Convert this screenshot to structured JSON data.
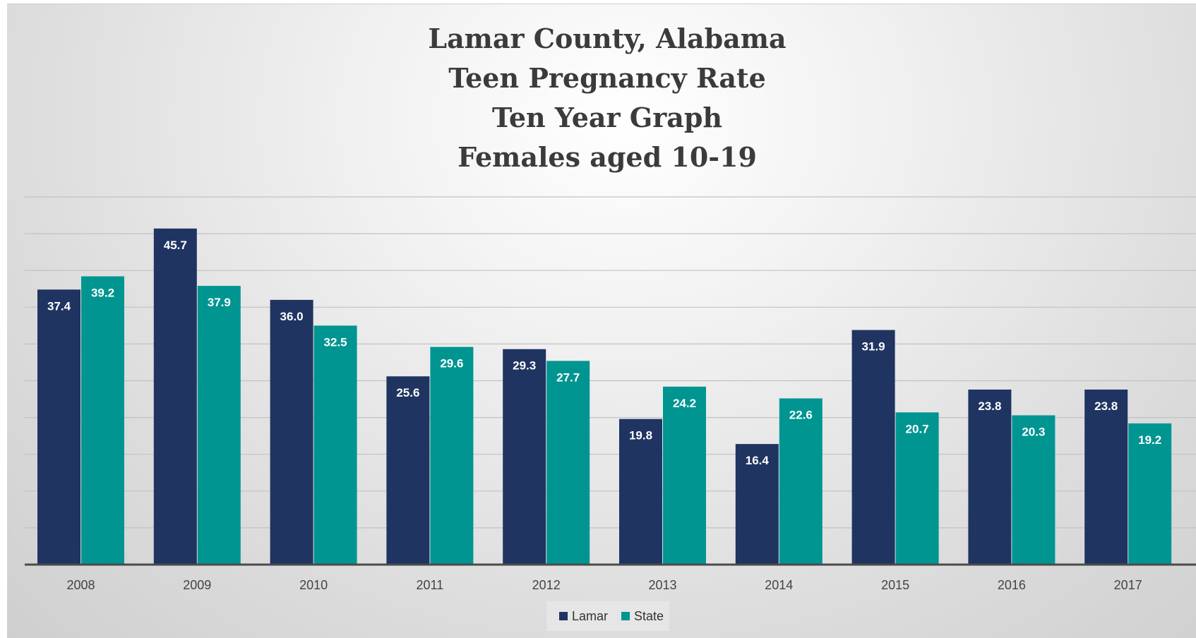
{
  "chart_data": {
    "type": "bar",
    "title_lines": [
      "Lamar County, Alabama",
      "Teen Pregnancy Rate",
      "Ten Year Graph",
      "Females aged 10-19"
    ],
    "categories": [
      "2008",
      "2009",
      "2010",
      "2011",
      "2012",
      "2013",
      "2014",
      "2015",
      "2016",
      "2017"
    ],
    "series": [
      {
        "name": "Lamar",
        "color": "#1f3461",
        "values": [
          37.4,
          45.7,
          36.0,
          25.6,
          29.3,
          19.8,
          16.4,
          31.9,
          23.8,
          23.8
        ],
        "labels": [
          "37.4",
          "45.7",
          "36.0",
          "25.6",
          "29.3",
          "19.8",
          "16.4",
          "31.9",
          "23.8",
          "23.8"
        ]
      },
      {
        "name": "State",
        "color": "#009591",
        "values": [
          39.2,
          37.9,
          32.5,
          29.6,
          27.7,
          24.2,
          22.6,
          20.7,
          20.3,
          19.2
        ],
        "labels": [
          "39.2",
          "37.9",
          "32.5",
          "29.6",
          "27.7",
          "24.2",
          "22.6",
          "20.7",
          "20.3",
          "19.2"
        ]
      }
    ],
    "ylim": [
      0,
      50
    ],
    "grid": true,
    "legend_position": "bottom"
  }
}
